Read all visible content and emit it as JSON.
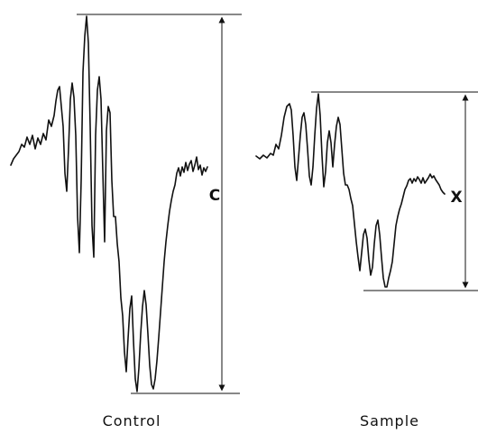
{
  "panels": [
    {
      "id": "control",
      "caption": "Control",
      "amplitude_label": "C"
    },
    {
      "id": "sample",
      "caption": "Sample",
      "amplitude_label": "X"
    }
  ]
}
